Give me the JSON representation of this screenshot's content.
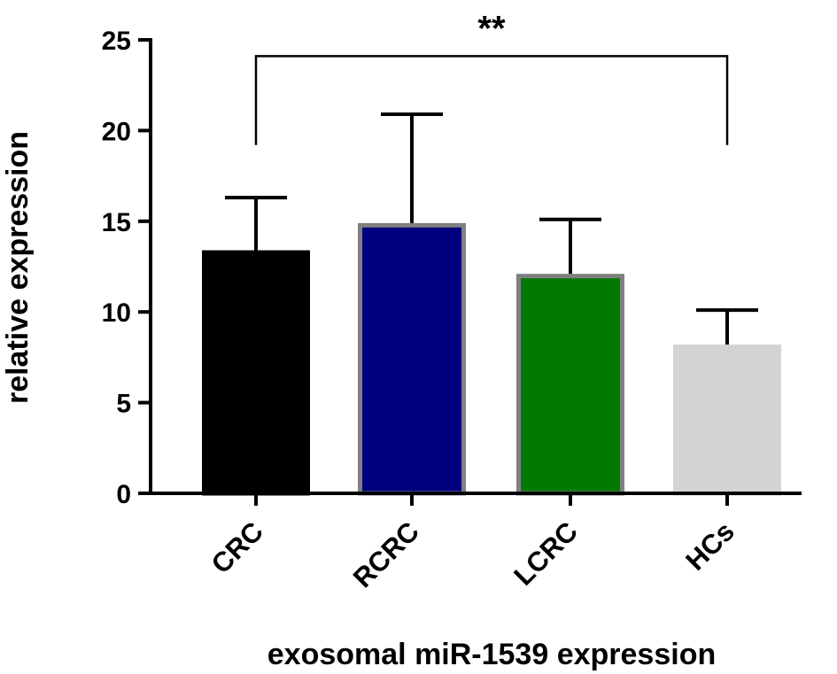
{
  "chart_data": {
    "type": "bar",
    "title": "",
    "xlabel": "exosomal miR-1539 expression",
    "ylabel": "relative expression",
    "ylim": [
      0,
      25
    ],
    "yticks": [
      0,
      5,
      10,
      15,
      20,
      25
    ],
    "yticklabels": [
      "0",
      "5",
      "10",
      "15",
      "20",
      "25"
    ],
    "grid": false,
    "categories": [
      "CRC",
      "RCRC",
      "LCRC",
      "HCs"
    ],
    "values": [
      13.4,
      14.9,
      12.1,
      8.2
    ],
    "error_upper": [
      16.3,
      20.9,
      15.1,
      10.1
    ],
    "colors": [
      "#000000",
      "#00007f",
      "#007a00",
      "#d3d3d3"
    ],
    "edge_colors": [
      "#000000",
      "#808080",
      "#808080",
      "#d3d3d3"
    ],
    "significance": {
      "label": "**",
      "from": "CRC",
      "to": "HCs",
      "y": 24.1,
      "drop_to": 19.2
    }
  }
}
